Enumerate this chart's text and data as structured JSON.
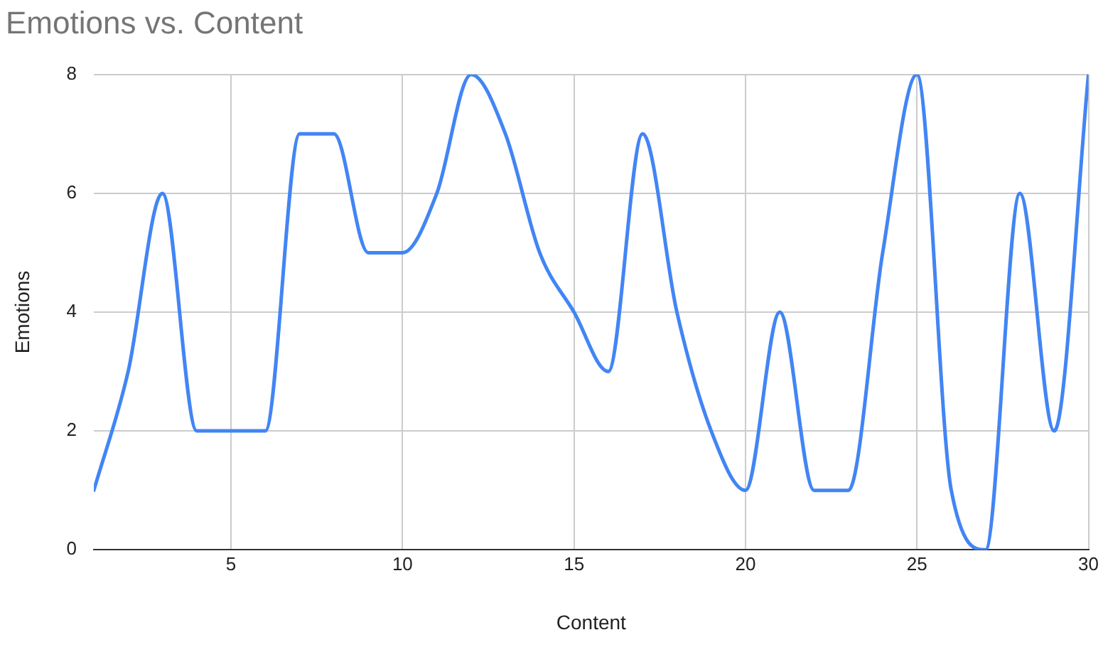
{
  "chart_data": {
    "type": "line",
    "title": "Emotions vs. Content",
    "xlabel": "Content",
    "ylabel": "Emotions",
    "x": [
      1,
      2,
      3,
      4,
      5,
      6,
      7,
      8,
      9,
      10,
      11,
      12,
      13,
      14,
      15,
      16,
      17,
      18,
      19,
      20,
      21,
      22,
      23,
      24,
      25,
      26,
      27,
      28,
      29,
      30
    ],
    "series": [
      {
        "color": "#4285f4",
        "values": [
          1,
          3,
          6,
          2,
          2,
          2,
          7,
          7,
          5,
          5,
          6,
          8,
          7,
          5,
          4,
          3,
          7,
          4,
          2,
          1,
          4,
          1,
          1,
          5,
          8,
          1,
          0,
          6,
          2,
          8
        ]
      }
    ],
    "xlim": [
      1,
      30
    ],
    "xticks": [
      5,
      10,
      15,
      20,
      25,
      30
    ],
    "ylim": [
      0,
      8
    ],
    "yticks": [
      0,
      2,
      4,
      6,
      8
    ],
    "grid": true,
    "legend": false,
    "marker": "none",
    "line_style": "solid"
  }
}
